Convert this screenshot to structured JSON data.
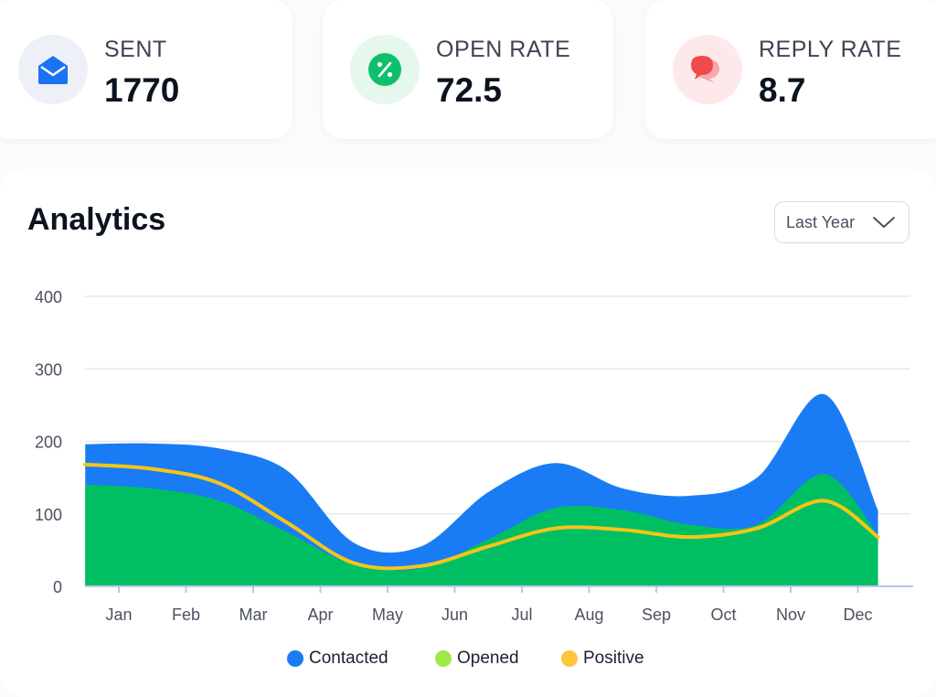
{
  "stats": [
    {
      "label": "SENT",
      "value": "1770",
      "icon": "envelope-icon",
      "icon_bg": "#eef0f7",
      "icon_color": "#1a73f2"
    },
    {
      "label": "OPEN RATE",
      "value": "72.5",
      "icon": "percent-icon",
      "icon_bg": "#e6f7ee",
      "icon_color": "#0fbf6b"
    },
    {
      "label": "REPLY RATE",
      "value": "8.7",
      "icon": "chat-bubbles-icon",
      "icon_bg": "#fde9ea",
      "icon_color": "#ee4b4b"
    }
  ],
  "analytics": {
    "title": "Analytics",
    "period": "Last Year"
  },
  "legend": [
    {
      "label": "Contacted",
      "color": "#1a7cf5"
    },
    {
      "label": "Opened",
      "color": "#9ee849"
    },
    {
      "label": "Positive",
      "color": "#ffc53d"
    }
  ],
  "chart_data": {
    "type": "area",
    "categories": [
      "Jan",
      "Feb",
      "Mar",
      "Apr",
      "May",
      "Jun",
      "Jul",
      "Aug",
      "Sep",
      "Oct",
      "Nov",
      "Dec"
    ],
    "ylim": [
      0,
      400
    ],
    "y_ticks": [
      0,
      100,
      200,
      300,
      400
    ],
    "grid": true,
    "legend_position": "bottom",
    "series": [
      {
        "name": "Contacted",
        "type": "area",
        "color": "#1a7cf5",
        "x": [
          -0.5,
          0.5,
          1.5,
          2.5,
          3.5,
          4.5,
          5.5,
          6.5,
          7.5,
          8.5,
          9.5,
          10.5,
          11.3
        ],
        "values": [
          196,
          197,
          190,
          160,
          60,
          55,
          130,
          170,
          135,
          125,
          150,
          265,
          105
        ]
      },
      {
        "name": "Opened",
        "type": "area",
        "color": "#00bf63",
        "x": [
          -0.5,
          0.5,
          1.5,
          2.5,
          3.5,
          4.5,
          5.5,
          6.5,
          7.5,
          8.5,
          9.5,
          10.5,
          11.3
        ],
        "values": [
          140,
          135,
          118,
          75,
          30,
          25,
          65,
          108,
          105,
          85,
          85,
          155,
          70
        ]
      },
      {
        "name": "Positive",
        "type": "line",
        "color": "#f5c518",
        "x": [
          -0.5,
          0.5,
          1.5,
          2.5,
          3.5,
          4.5,
          5.5,
          6.5,
          7.5,
          8.5,
          9.5,
          10.5,
          11.3
        ],
        "values": [
          168,
          162,
          142,
          88,
          32,
          28,
          55,
          80,
          78,
          68,
          80,
          118,
          68
        ]
      }
    ]
  }
}
